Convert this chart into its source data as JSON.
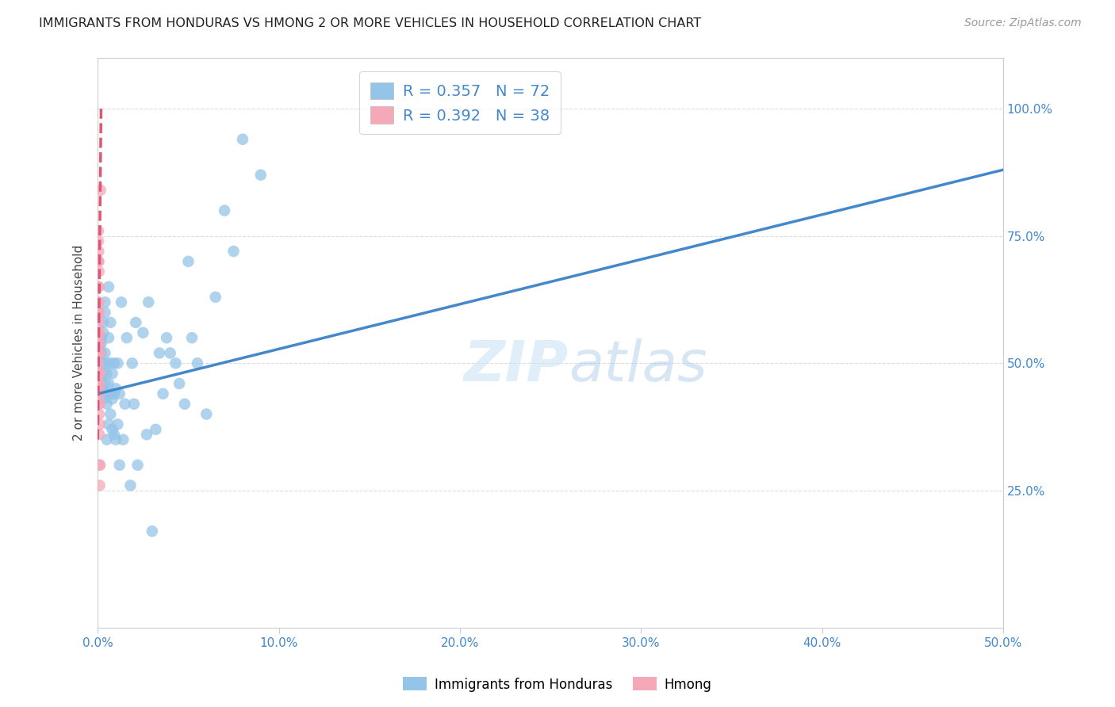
{
  "title": "IMMIGRANTS FROM HONDURAS VS HMONG 2 OR MORE VEHICLES IN HOUSEHOLD CORRELATION CHART",
  "source": "Source: ZipAtlas.com",
  "ylabel": "2 or more Vehicles in Household",
  "xlim": [
    0.0,
    0.5
  ],
  "ylim": [
    -0.02,
    1.1
  ],
  "xtick_labels": [
    "0.0%",
    "10.0%",
    "20.0%",
    "30.0%",
    "40.0%",
    "50.0%"
  ],
  "xtick_vals": [
    0.0,
    0.1,
    0.2,
    0.3,
    0.4,
    0.5
  ],
  "ytick_labels": [
    "25.0%",
    "50.0%",
    "75.0%",
    "100.0%"
  ],
  "ytick_vals": [
    0.25,
    0.5,
    0.75,
    1.0
  ],
  "blue_color": "#94C4E8",
  "pink_color": "#F4A8B8",
  "blue_line_color": "#4488CC",
  "pink_line_color": "#E05575",
  "R_blue": 0.357,
  "N_blue": 72,
  "R_pink": 0.392,
  "N_pink": 38,
  "legend_label_blue": "Immigrants from Honduras",
  "legend_label_pink": "Hmong",
  "watermark_zip": "ZIP",
  "watermark_atlas": "atlas",
  "blue_scatter_x": [
    0.001,
    0.001,
    0.002,
    0.002,
    0.002,
    0.002,
    0.002,
    0.003,
    0.003,
    0.003,
    0.003,
    0.003,
    0.003,
    0.004,
    0.004,
    0.004,
    0.004,
    0.004,
    0.005,
    0.005,
    0.005,
    0.005,
    0.006,
    0.006,
    0.006,
    0.006,
    0.007,
    0.007,
    0.007,
    0.007,
    0.008,
    0.008,
    0.008,
    0.009,
    0.009,
    0.009,
    0.01,
    0.01,
    0.011,
    0.011,
    0.012,
    0.012,
    0.013,
    0.014,
    0.015,
    0.016,
    0.018,
    0.019,
    0.02,
    0.021,
    0.022,
    0.025,
    0.027,
    0.028,
    0.03,
    0.032,
    0.034,
    0.036,
    0.038,
    0.04,
    0.043,
    0.045,
    0.048,
    0.05,
    0.052,
    0.055,
    0.06,
    0.065,
    0.07,
    0.075,
    0.08,
    0.09
  ],
  "blue_scatter_y": [
    0.53,
    0.54,
    0.55,
    0.47,
    0.5,
    0.52,
    0.54,
    0.56,
    0.43,
    0.45,
    0.48,
    0.5,
    0.58,
    0.44,
    0.46,
    0.52,
    0.6,
    0.62,
    0.35,
    0.42,
    0.48,
    0.5,
    0.38,
    0.46,
    0.55,
    0.65,
    0.4,
    0.44,
    0.5,
    0.58,
    0.37,
    0.43,
    0.48,
    0.36,
    0.44,
    0.5,
    0.35,
    0.45,
    0.38,
    0.5,
    0.3,
    0.44,
    0.62,
    0.35,
    0.42,
    0.55,
    0.26,
    0.5,
    0.42,
    0.58,
    0.3,
    0.56,
    0.36,
    0.62,
    0.17,
    0.37,
    0.52,
    0.44,
    0.55,
    0.52,
    0.5,
    0.46,
    0.42,
    0.7,
    0.55,
    0.5,
    0.4,
    0.63,
    0.8,
    0.72,
    0.94,
    0.87
  ],
  "pink_scatter_x": [
    0.0002,
    0.0002,
    0.0003,
    0.0003,
    0.0003,
    0.0004,
    0.0004,
    0.0004,
    0.0004,
    0.0005,
    0.0005,
    0.0005,
    0.0005,
    0.0005,
    0.0005,
    0.0006,
    0.0006,
    0.0006,
    0.0006,
    0.0006,
    0.0006,
    0.0007,
    0.0007,
    0.0007,
    0.0007,
    0.0008,
    0.0008,
    0.0008,
    0.0008,
    0.0008,
    0.0009,
    0.0009,
    0.0009,
    0.001,
    0.001,
    0.001,
    0.0012,
    0.0015
  ],
  "pink_scatter_y": [
    0.46,
    0.62,
    0.7,
    0.74,
    0.76,
    0.5,
    0.6,
    0.65,
    0.72,
    0.45,
    0.52,
    0.56,
    0.6,
    0.65,
    0.7,
    0.42,
    0.48,
    0.54,
    0.58,
    0.62,
    0.68,
    0.4,
    0.46,
    0.52,
    0.56,
    0.36,
    0.42,
    0.48,
    0.54,
    0.6,
    0.3,
    0.44,
    0.52,
    0.26,
    0.38,
    0.48,
    0.3,
    0.84
  ],
  "blue_trendline_x": [
    0.0,
    0.5
  ],
  "blue_trendline_y": [
    0.44,
    0.88
  ],
  "pink_trendline_x": [
    0.0,
    0.0018
  ],
  "pink_trendline_y": [
    0.35,
    1.0
  ]
}
